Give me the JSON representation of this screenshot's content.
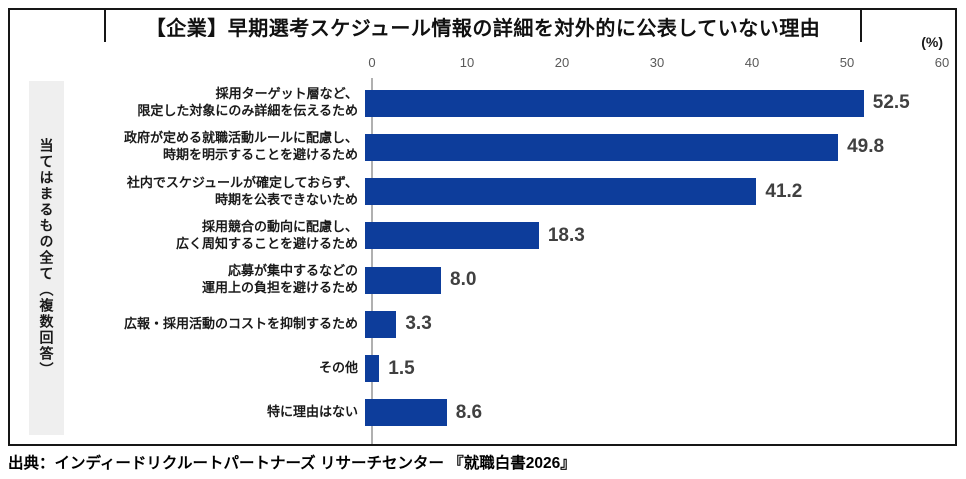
{
  "chart": {
    "title": "【企業】早期選考スケジュール情報の詳細を対外的に公表していない理由",
    "unit_label": "(%)",
    "side_label": "当てはまるもの全て（複数回答）"
  },
  "source": "出典：インディードリクルートパートナーズ リサーチセンター 『就職白書2026』",
  "chart_data": {
    "type": "bar",
    "orientation": "horizontal",
    "title": "【企業】早期選考スケジュール情報の詳細を対外的に公表していない理由",
    "group_label": "当てはまるもの全て（複数回答）",
    "unit": "%",
    "categories": [
      "採用ターゲット層など、\n限定した対象にのみ詳細を伝えるため",
      "政府が定める就職活動ルールに配慮し、\n時期を明示することを避けるため",
      "社内でスケジュールが確定しておらず、\n時期を公表できないため",
      "採用競合の動向に配慮し、\n広く周知することを避けるため",
      "応募が集中するなどの\n運用上の負担を避けるため",
      "広報・採用活動のコストを抑制するため",
      "その他",
      "特に理由はない"
    ],
    "values": [
      52.5,
      49.8,
      41.2,
      18.3,
      8.0,
      3.3,
      1.5,
      8.6
    ],
    "value_labels": [
      "52.5",
      "49.8",
      "41.2",
      "18.3",
      "8.0",
      "3.3",
      "1.5",
      "8.6"
    ],
    "xlim": [
      0,
      60
    ],
    "xticks": [
      0,
      10,
      20,
      30,
      40,
      50,
      60
    ],
    "grid": false,
    "legend": false,
    "bar_color": "#0d3d9b",
    "value_label_color": "#404040",
    "tick_label_color": "#595959"
  }
}
